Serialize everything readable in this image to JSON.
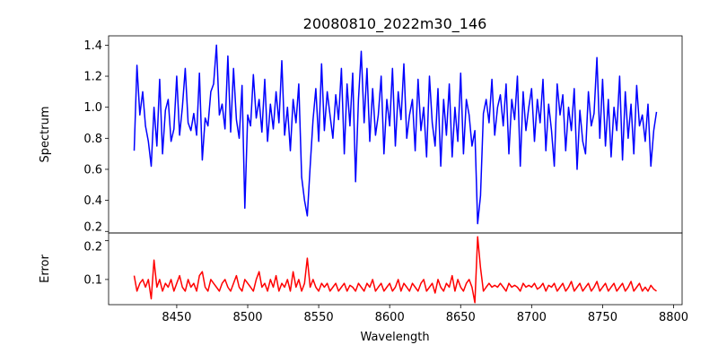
{
  "chart_data": [
    {
      "type": "line",
      "title": "20080810_2022m30_146",
      "xlabel": "",
      "ylabel": "Spectrum",
      "xlim": [
        8402,
        8806
      ],
      "ylim": [
        0.19,
        1.46
      ],
      "yticks": [
        0.2,
        0.4,
        0.6,
        0.8,
        1.0,
        1.2,
        1.4
      ],
      "ytick_labels": [
        "0.2",
        "0.4",
        "0.6",
        "0.8",
        "1.0",
        "1.2",
        "1.4"
      ],
      "series": [
        {
          "name": "Spectrum",
          "color": "#0000ff",
          "x_start": 8420,
          "x_step": 2,
          "values": [
            0.72,
            1.27,
            0.95,
            1.1,
            0.88,
            0.78,
            0.62,
            1.0,
            0.75,
            1.18,
            0.7,
            0.98,
            1.05,
            0.78,
            0.86,
            1.2,
            0.82,
            1.0,
            1.25,
            0.9,
            0.85,
            0.96,
            0.82,
            1.22,
            0.66,
            0.93,
            0.88,
            1.1,
            1.15,
            1.4,
            0.95,
            1.02,
            0.86,
            1.33,
            0.84,
            1.25,
            0.92,
            0.8,
            1.14,
            0.35,
            0.95,
            0.88,
            1.21,
            0.93,
            1.05,
            0.84,
            1.18,
            0.78,
            1.02,
            0.86,
            1.1,
            0.9,
            1.3,
            0.82,
            1.0,
            0.72,
            1.05,
            0.9,
            1.15,
            0.55,
            0.4,
            0.3,
            0.62,
            0.92,
            1.12,
            0.78,
            1.28,
            0.85,
            1.1,
            0.95,
            0.8,
            1.08,
            0.92,
            1.25,
            0.7,
            1.15,
            0.88,
            1.22,
            0.52,
            1.05,
            1.36,
            0.9,
            1.25,
            0.78,
            1.12,
            0.82,
            0.95,
            1.2,
            0.7,
            1.05,
            0.88,
            1.25,
            0.75,
            1.1,
            0.92,
            1.28,
            0.8,
            0.95,
            1.05,
            0.72,
            1.18,
            0.85,
            1.0,
            0.68,
            1.2,
            0.9,
            0.75,
            1.12,
            0.62,
            1.05,
            0.82,
            1.15,
            0.68,
            1.0,
            0.78,
            1.22,
            0.7,
            1.05,
            0.95,
            0.75,
            0.85,
            0.25,
            0.43,
            0.96,
            1.05,
            0.9,
            1.18,
            0.82,
            1.0,
            1.08,
            0.88,
            1.15,
            0.7,
            1.05,
            0.92,
            1.2,
            0.62,
            1.1,
            0.85,
            1.0,
            1.12,
            0.78,
            1.05,
            0.9,
            1.18,
            0.72,
            1.02,
            0.85,
            0.62,
            1.15,
            0.95,
            1.08,
            0.72,
            1.0,
            0.85,
            1.12,
            0.6,
            0.98,
            0.78,
            0.7,
            1.1,
            0.88,
            0.96,
            1.32,
            0.8,
            1.18,
            0.75,
            1.05,
            0.68,
            1.0,
            0.85,
            1.2,
            0.66,
            1.1,
            0.8,
            1.02,
            0.7,
            1.14,
            0.88,
            0.95,
            0.78,
            1.02,
            0.62,
            0.85,
            0.97
          ]
        }
      ]
    },
    {
      "type": "line",
      "title": "",
      "xlabel": "Wavelength",
      "ylabel": "Error",
      "xlim": [
        8402,
        8806
      ],
      "ylim": [
        0.035,
        0.22
      ],
      "yticks": [
        0.1,
        0.2
      ],
      "ytick_labels": [
        "0.1",
        "0.2"
      ],
      "xticks": [
        8450,
        8500,
        8550,
        8600,
        8650,
        8700,
        8750,
        8800
      ],
      "xtick_labels": [
        "8450",
        "8500",
        "8550",
        "8600",
        "8650",
        "8700",
        "8750",
        "8800"
      ],
      "series": [
        {
          "name": "Error",
          "color": "#ff0000",
          "x_start": 8420,
          "x_step": 2,
          "values": [
            0.11,
            0.07,
            0.09,
            0.1,
            0.08,
            0.1,
            0.05,
            0.15,
            0.08,
            0.1,
            0.07,
            0.09,
            0.08,
            0.1,
            0.07,
            0.09,
            0.11,
            0.08,
            0.07,
            0.1,
            0.08,
            0.09,
            0.07,
            0.11,
            0.12,
            0.08,
            0.07,
            0.1,
            0.09,
            0.08,
            0.07,
            0.09,
            0.1,
            0.08,
            0.07,
            0.09,
            0.11,
            0.08,
            0.07,
            0.1,
            0.09,
            0.08,
            0.07,
            0.1,
            0.12,
            0.08,
            0.09,
            0.07,
            0.1,
            0.08,
            0.11,
            0.07,
            0.09,
            0.08,
            0.1,
            0.07,
            0.12,
            0.08,
            0.1,
            0.07,
            0.09,
            0.155,
            0.08,
            0.1,
            0.08,
            0.07,
            0.09,
            0.08,
            0.09,
            0.07,
            0.08,
            0.09,
            0.07,
            0.08,
            0.09,
            0.07,
            0.085,
            0.08,
            0.07,
            0.09,
            0.08,
            0.07,
            0.09,
            0.08,
            0.1,
            0.07,
            0.08,
            0.09,
            0.07,
            0.08,
            0.09,
            0.07,
            0.08,
            0.1,
            0.07,
            0.09,
            0.08,
            0.07,
            0.09,
            0.08,
            0.07,
            0.09,
            0.1,
            0.07,
            0.08,
            0.09,
            0.065,
            0.1,
            0.08,
            0.07,
            0.09,
            0.08,
            0.11,
            0.07,
            0.1,
            0.08,
            0.07,
            0.09,
            0.1,
            0.08,
            0.04,
            0.21,
            0.13,
            0.07,
            0.08,
            0.09,
            0.08,
            0.085,
            0.08,
            0.09,
            0.08,
            0.07,
            0.09,
            0.08,
            0.085,
            0.08,
            0.07,
            0.09,
            0.08,
            0.085,
            0.08,
            0.09,
            0.075,
            0.08,
            0.09,
            0.07,
            0.085,
            0.08,
            0.09,
            0.07,
            0.08,
            0.09,
            0.07,
            0.08,
            0.095,
            0.07,
            0.08,
            0.09,
            0.07,
            0.08,
            0.09,
            0.07,
            0.08,
            0.095,
            0.07,
            0.08,
            0.09,
            0.07,
            0.08,
            0.09,
            0.07,
            0.08,
            0.09,
            0.07,
            0.08,
            0.095,
            0.07,
            0.08,
            0.09,
            0.07,
            0.08,
            0.07,
            0.085,
            0.075,
            0.07
          ]
        }
      ]
    }
  ]
}
